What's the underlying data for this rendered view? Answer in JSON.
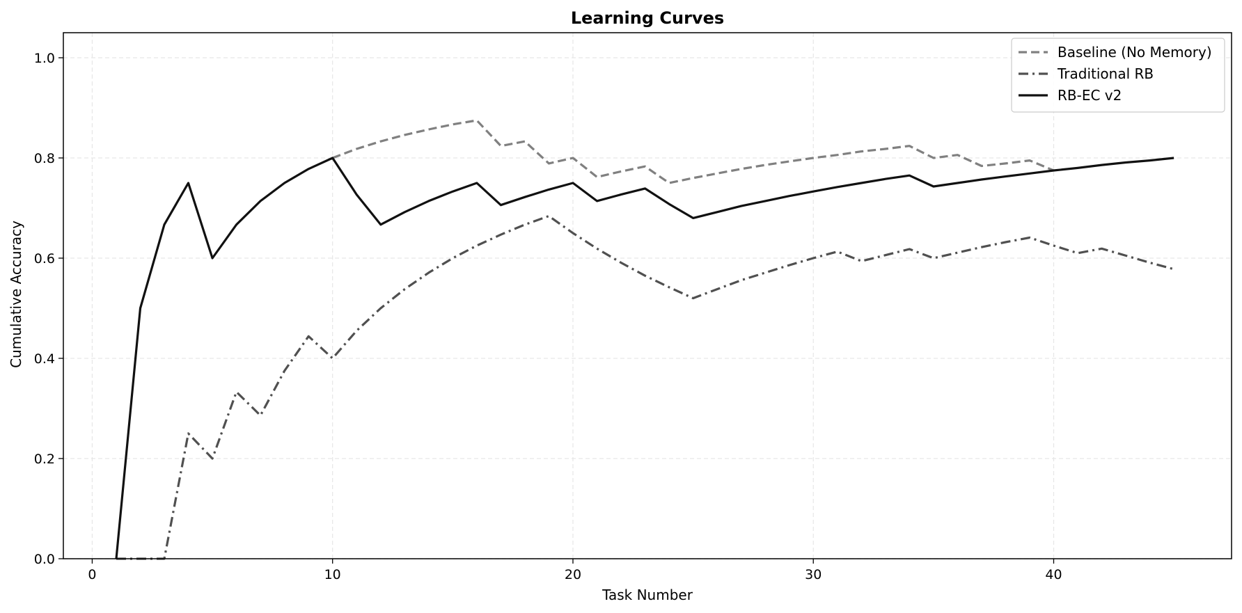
{
  "chart_data": {
    "type": "line",
    "title": "Learning Curves",
    "xlabel": "Task Number",
    "ylabel": "Cumulative Accuracy",
    "xlim": [
      -1.2,
      47.4
    ],
    "ylim": [
      0.0,
      1.05
    ],
    "xticks": [
      0,
      10,
      20,
      30,
      40
    ],
    "xtick_labels": [
      "0",
      "10",
      "20",
      "30",
      "40"
    ],
    "yticks": [
      0.0,
      0.2,
      0.4,
      0.6,
      0.8,
      1.0
    ],
    "ytick_labels": [
      "0.0",
      "0.2",
      "0.4",
      "0.6",
      "0.8",
      "1.0"
    ],
    "grid": true,
    "legend_position": "top-right",
    "series": [
      {
        "name": "Baseline (No Memory)",
        "color": "#808080",
        "style": "dashed",
        "x": [
          10,
          11,
          12,
          13,
          14,
          15,
          16,
          17,
          18,
          19,
          20,
          21,
          22,
          23,
          24,
          25,
          26,
          27,
          28,
          29,
          30,
          31,
          32,
          33,
          34,
          35,
          36,
          37,
          38,
          39,
          40
        ],
        "y": [
          0.8,
          0.818,
          0.833,
          0.846,
          0.857,
          0.867,
          0.875,
          0.824,
          0.833,
          0.789,
          0.8,
          0.762,
          0.773,
          0.783,
          0.75,
          0.76,
          0.769,
          0.778,
          0.786,
          0.793,
          0.8,
          0.806,
          0.813,
          0.818,
          0.824,
          0.8,
          0.806,
          0.784,
          0.789,
          0.795,
          0.775
        ]
      },
      {
        "name": "Traditional RB",
        "color": "#505050",
        "style": "dashdot",
        "x": [
          1,
          2,
          3,
          4,
          5,
          6,
          7,
          8,
          9,
          10,
          11,
          12,
          13,
          14,
          15,
          16,
          17,
          18,
          19,
          20,
          21,
          22,
          23,
          24,
          25,
          26,
          27,
          28,
          29,
          30,
          31,
          32,
          33,
          34,
          35,
          36,
          37,
          38,
          39,
          40,
          41,
          42,
          43,
          44,
          45
        ],
        "y": [
          0.0,
          0.0,
          0.0,
          0.25,
          0.2,
          0.333,
          0.286,
          0.375,
          0.444,
          0.4,
          0.455,
          0.5,
          0.538,
          0.571,
          0.6,
          0.625,
          0.647,
          0.667,
          0.684,
          0.65,
          0.619,
          0.591,
          0.565,
          0.542,
          0.52,
          0.538,
          0.556,
          0.571,
          0.586,
          0.6,
          0.613,
          0.594,
          0.606,
          0.618,
          0.6,
          0.611,
          0.622,
          0.632,
          0.641,
          0.625,
          0.61,
          0.619,
          0.605,
          0.591,
          0.578
        ]
      },
      {
        "name": "RB-EC v2",
        "color": "#111111",
        "style": "solid",
        "x": [
          1,
          2,
          3,
          4,
          5,
          6,
          7,
          8,
          9,
          10,
          11,
          12,
          13,
          14,
          15,
          16,
          17,
          18,
          19,
          20,
          21,
          22,
          23,
          24,
          25,
          26,
          27,
          28,
          29,
          30,
          31,
          32,
          33,
          34,
          35,
          36,
          37,
          38,
          39,
          40,
          41,
          42,
          43,
          44,
          45
        ],
        "y": [
          0.0,
          0.5,
          0.667,
          0.75,
          0.6,
          0.667,
          0.714,
          0.75,
          0.778,
          0.8,
          0.727,
          0.667,
          0.692,
          0.714,
          0.733,
          0.75,
          0.706,
          0.722,
          0.737,
          0.75,
          0.714,
          0.727,
          0.739,
          0.708,
          0.68,
          0.692,
          0.704,
          0.714,
          0.724,
          0.733,
          0.742,
          0.75,
          0.758,
          0.765,
          0.743,
          0.75,
          0.757,
          0.763,
          0.769,
          0.775,
          0.78,
          0.786,
          0.791,
          0.795,
          0.8
        ]
      }
    ]
  }
}
